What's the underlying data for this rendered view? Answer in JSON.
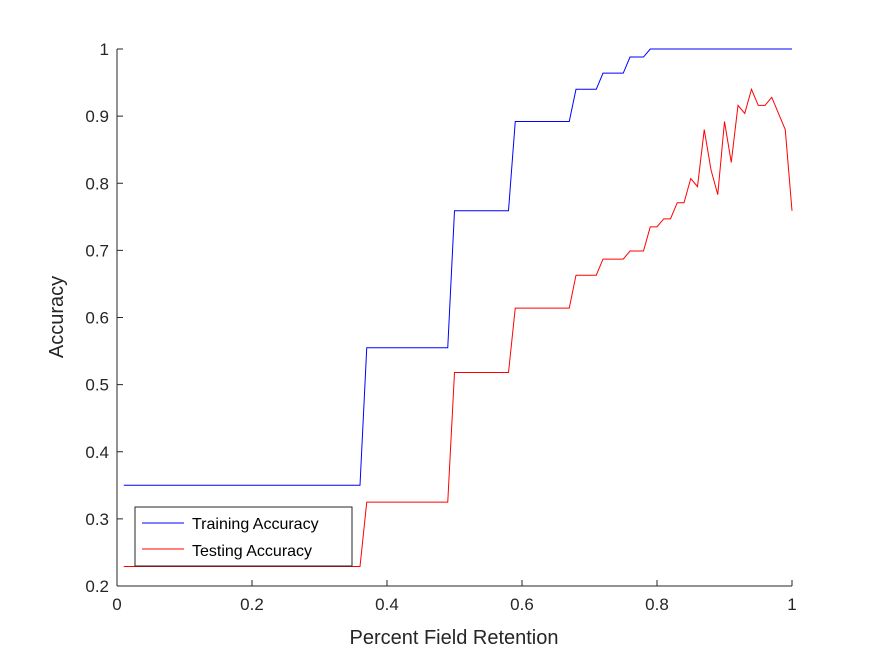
{
  "chart_data": {
    "type": "line",
    "title": "",
    "xlabel": "Percent Field Retention",
    "ylabel": "Accuracy",
    "xlim": [
      0,
      1
    ],
    "ylim": [
      0.2,
      1
    ],
    "xticks": [
      0,
      0.2,
      0.4,
      0.6,
      0.8,
      1
    ],
    "xtick_labels": [
      "0",
      "0.2",
      "0.4",
      "0.6",
      "0.8",
      "1"
    ],
    "yticks": [
      0.2,
      0.3,
      0.4,
      0.5,
      0.6,
      0.7,
      0.8,
      0.9,
      1
    ],
    "ytick_labels": [
      "0.2",
      "0.3",
      "0.4",
      "0.5",
      "0.6",
      "0.7",
      "0.8",
      "0.9",
      "1"
    ],
    "grid": false,
    "legend_location": "bottom-left",
    "series": [
      {
        "name": "Training Accuracy",
        "color": "#0000ff",
        "x": [
          0.01,
          0.36,
          0.37,
          0.49,
          0.5,
          0.58,
          0.59,
          0.67,
          0.68,
          0.71,
          0.72,
          0.75,
          0.76,
          0.78,
          0.79,
          1.0
        ],
        "y": [
          0.35,
          0.35,
          0.555,
          0.555,
          0.759,
          0.759,
          0.892,
          0.892,
          0.94,
          0.94,
          0.964,
          0.964,
          0.988,
          0.988,
          1.0,
          1.0
        ]
      },
      {
        "name": "Testing Accuracy",
        "color": "#ff0000",
        "x": [
          0.01,
          0.36,
          0.37,
          0.49,
          0.5,
          0.58,
          0.59,
          0.67,
          0.68,
          0.71,
          0.72,
          0.75,
          0.76,
          0.78,
          0.79,
          0.8,
          0.81,
          0.82,
          0.83,
          0.84,
          0.85,
          0.86,
          0.87,
          0.88,
          0.89,
          0.9,
          0.91,
          0.92,
          0.93,
          0.94,
          0.95,
          0.96,
          0.97,
          0.98,
          0.99,
          1.0
        ],
        "y": [
          0.229,
          0.229,
          0.325,
          0.325,
          0.518,
          0.518,
          0.614,
          0.614,
          0.663,
          0.663,
          0.687,
          0.687,
          0.699,
          0.699,
          0.735,
          0.735,
          0.747,
          0.747,
          0.771,
          0.771,
          0.807,
          0.795,
          0.88,
          0.82,
          0.783,
          0.892,
          0.831,
          0.916,
          0.904,
          0.94,
          0.916,
          0.916,
          0.928,
          0.904,
          0.88,
          0.759
        ]
      }
    ]
  }
}
